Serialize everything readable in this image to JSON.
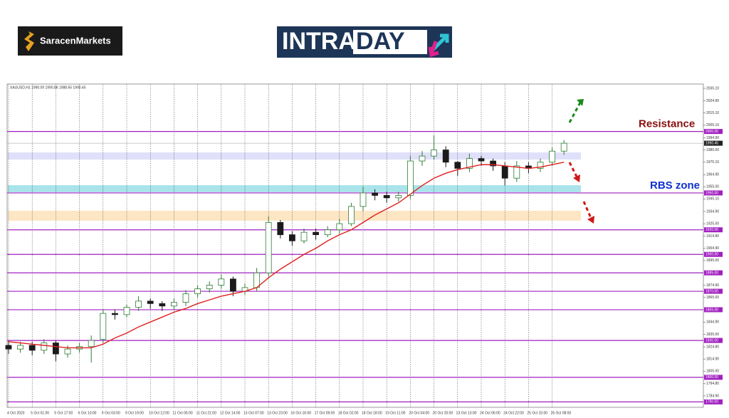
{
  "header": {
    "brand": "SaracenMarkets",
    "banner_left": "INTRA",
    "banner_right": "DAY"
  },
  "chart_data": {
    "type": "candlestick",
    "title": "XAUUSD,H1  1990.09 1990.86 1988.65 1990.45",
    "categories": [
      "4 Oct 2023",
      null,
      "5 Oct 01:00",
      null,
      "5 Oct 17:00",
      null,
      "6 Oct 10:00",
      null,
      "9 Oct 03:00",
      null,
      "9 Oct 19:00",
      null,
      "10 Oct 12:00",
      null,
      "11 Oct 05:00",
      null,
      "11 Oct 21:00",
      null,
      "12 Oct 14:00",
      null,
      "13 Oct 07:00",
      null,
      "13 Oct 23:00",
      null,
      "16 Oct 16:00",
      null,
      "17 Oct 09:00",
      null,
      "18 Oct 02:00",
      null,
      "18 Oct 18:00",
      null,
      "19 Oct 11:00",
      null,
      "20 Oct 04:00",
      null,
      "20 Oct 20:00",
      null,
      "23 Oct 13:00",
      null,
      "24 Oct 06:00",
      null,
      "24 Oct 22:00",
      null,
      "25 Oct 15:00",
      null,
      "26 Oct 08:00",
      null
    ],
    "ohlc": {
      "up_color": "#2e7d32",
      "down_color": "#1b1b1b",
      "open": [
        1826,
        1823,
        1826,
        1822,
        1828,
        1819,
        1823,
        1825,
        1831,
        1852,
        1851,
        1857,
        1862,
        1860,
        1858,
        1861,
        1868,
        1872,
        1875,
        1880,
        1870,
        1873,
        1885,
        1926,
        1916,
        1911,
        1918,
        1916,
        1920,
        1925,
        1939,
        1950,
        1948,
        1946,
        1948,
        1976,
        1980,
        1985,
        1975,
        1970,
        1978,
        1976,
        1972,
        1962,
        1972,
        1970,
        1975,
        1984
      ],
      "high": [
        1830,
        1829,
        1829,
        1831,
        1830,
        1826,
        1828,
        1834,
        1855,
        1855,
        1859,
        1866,
        1864,
        1862,
        1864,
        1871,
        1875,
        1878,
        1884,
        1882,
        1876,
        1889,
        1931,
        1928,
        1919,
        1921,
        1921,
        1923,
        1929,
        1942,
        1955,
        1953,
        1951,
        1951,
        1980,
        1984,
        1997,
        1988,
        1976,
        1982,
        1980,
        1978,
        1975,
        1976,
        1975,
        1978,
        1987,
        1993
      ],
      "low": [
        1819,
        1820,
        1818,
        1819,
        1813,
        1816,
        1820,
        1812,
        1828,
        1847,
        1849,
        1854,
        1856,
        1854,
        1855,
        1858,
        1865,
        1869,
        1872,
        1866,
        1867,
        1870,
        1882,
        1913,
        1907,
        1909,
        1912,
        1914,
        1917,
        1923,
        1935,
        1944,
        1942,
        1943,
        1945,
        1972,
        1977,
        1971,
        1964,
        1967,
        1972,
        1968,
        1956,
        1959,
        1966,
        1967,
        1972,
        1981
      ],
      "close": [
        1823,
        1826,
        1822,
        1828,
        1819,
        1823,
        1825,
        1830,
        1852,
        1851,
        1857,
        1862,
        1860,
        1858,
        1861,
        1868,
        1872,
        1875,
        1880,
        1870,
        1873,
        1885,
        1926,
        1916,
        1911,
        1918,
        1916,
        1920,
        1925,
        1939,
        1950,
        1948,
        1946,
        1948,
        1976,
        1980,
        1985,
        1975,
        1970,
        1978,
        1976,
        1972,
        1962,
        1972,
        1970,
        1975,
        1984,
        1990.45
      ]
    },
    "moving_average": {
      "color": "#e02020",
      "values": [
        1829,
        1828,
        1827,
        1826,
        1825,
        1824,
        1824,
        1824,
        1827,
        1832,
        1836,
        1841,
        1845,
        1849,
        1853,
        1856,
        1860,
        1863,
        1866,
        1868,
        1870,
        1873,
        1881,
        1888,
        1894,
        1900,
        1905,
        1911,
        1916,
        1920,
        1926,
        1932,
        1937,
        1942,
        1949,
        1956,
        1962,
        1966,
        1969,
        1971,
        1973,
        1973,
        1972,
        1971,
        1970,
        1971,
        1973,
        1975
      ]
    },
    "ylim": [
      1775.6,
      2038.6
    ],
    "yticks": [
      {
        "value": 2035.1,
        "label": "2035.10"
      },
      {
        "value": 2024.9,
        "label": "2024.90"
      },
      {
        "value": 2015.1,
        "label": "2015.10"
      },
      {
        "value": 2005.1,
        "label": "2005.10"
      },
      {
        "value": 1994.9,
        "label": "1994.90"
      },
      {
        "value": 1985,
        "label": "1985.00"
      },
      {
        "value": 1975.1,
        "label": "1975.10"
      },
      {
        "value": 1964.9,
        "label": "1964.90"
      },
      {
        "value": 1955,
        "label": "1955.00"
      },
      {
        "value": 1945.1,
        "label": "1945.10"
      },
      {
        "value": 1934.9,
        "label": "1934.90"
      },
      {
        "value": 1925,
        "label": "1925.00"
      },
      {
        "value": 1914.8,
        "label": "1914.80"
      },
      {
        "value": 1904.9,
        "label": "1904.90"
      },
      {
        "value": 1895,
        "label": "1895.00"
      },
      {
        "value": 1874.9,
        "label": "1874.90"
      },
      {
        "value": 1865,
        "label": "1865.00"
      },
      {
        "value": 1844.9,
        "label": "1844.90"
      },
      {
        "value": 1835,
        "label": "1835.00"
      },
      {
        "value": 1824.8,
        "label": "1824.80"
      },
      {
        "value": 1814.9,
        "label": "1814.90"
      },
      {
        "value": 1805,
        "label": "1805.00"
      },
      {
        "value": 1794.8,
        "label": "1794.80"
      },
      {
        "value": 1784.9,
        "label": "1784.90"
      }
    ],
    "levels": {
      "color": "#a020c0",
      "items": [
        {
          "value": 2000,
          "label": "2000.00"
        },
        {
          "value": 1950,
          "label": "1950.00"
        },
        {
          "value": 1920,
          "label": "1920.00"
        },
        {
          "value": 1900,
          "label": "1900.00"
        },
        {
          "value": 1885,
          "label": "1885.00"
        },
        {
          "value": 1870,
          "label": "1870.00"
        },
        {
          "value": 1855,
          "label": "1855.00"
        },
        {
          "value": 1830,
          "label": "1830.00"
        },
        {
          "value": 1800,
          "label": "1800.00"
        },
        {
          "value": 1780,
          "label": "1780.00"
        }
      ]
    },
    "last_price": {
      "value": 1990.45,
      "label": "1990.45"
    },
    "zones": [
      {
        "from": 1977.2,
        "to": 1983,
        "color": "#e0e0fa"
      },
      {
        "from": 1950.6,
        "to": 1956.3,
        "color": "#a8e4ea"
      },
      {
        "from": 1927.4,
        "to": 1935.5,
        "color": "#fde6c4"
      }
    ],
    "annotations": [
      {
        "text": "Resistance",
        "color": "#8b1010"
      },
      {
        "text": "RBS zone",
        "color": "#1030d0"
      }
    ]
  }
}
